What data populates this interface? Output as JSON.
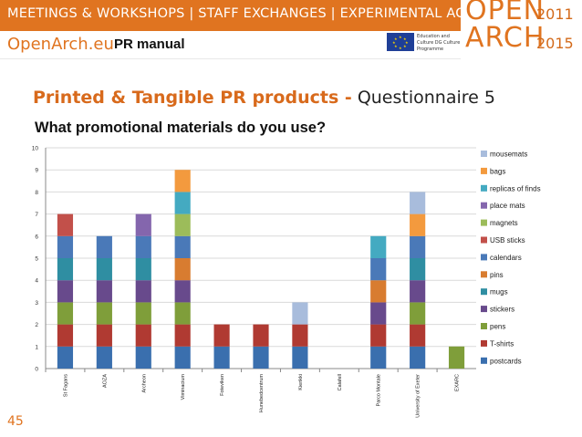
{
  "header": {
    "banner": "MEETINGS & WORKSHOPS | STAFF EXCHANGES | EXPERIMENTAL ACTIONS",
    "site": "OpenArch.eu",
    "manual": "PR manual",
    "eu_text": "Education and Culture DG Culture Programme",
    "logo_line1": "OPEN",
    "logo_line2": "ARCH",
    "year_start": "2011",
    "year_end": "2015"
  },
  "slide": {
    "title_main": "Printed & Tangible PR products -",
    "title_sub": "Questionnaire 5",
    "question": "What promotional materials do you use?",
    "page_number": "45"
  },
  "colors": {
    "accent": "#e07420",
    "postcards": "#3a6fae",
    "T-shirts": "#b03a32",
    "pens": "#7f9e3a",
    "stickers": "#684a8c",
    "mugs": "#2f8ea2",
    "pins": "#d87c30",
    "calendars": "#4a79b8",
    "USB sticks": "#c2504a",
    "magnets": "#9cbc5a",
    "place mats": "#8466ad",
    "replicas of finds": "#44aac1",
    "bags": "#f39a3e",
    "mousemats": "#a8bcdc"
  },
  "chart_data": {
    "type": "bar",
    "stacked": true,
    "title": "",
    "xlabel": "",
    "ylabel": "",
    "ylim": [
      0,
      10
    ],
    "yticks": [
      "0",
      "1",
      "2",
      "3",
      "4",
      "5",
      "6",
      "7",
      "8",
      "9",
      "10"
    ],
    "grid": true,
    "legend_position": "right",
    "categories": [
      "St Fagans",
      "AOZA",
      "Archeon",
      "Viminacium",
      "Foteviken",
      "Hunebedcentrum",
      "Kierikki",
      "Calafell",
      "Parco Montale",
      "University of Exeter",
      "EXARC"
    ],
    "series": [
      {
        "name": "postcards",
        "values": [
          1,
          1,
          1,
          1,
          1,
          1,
          1,
          0,
          1,
          1,
          0
        ]
      },
      {
        "name": "T-shirts",
        "values": [
          1,
          1,
          1,
          1,
          1,
          1,
          1,
          0,
          1,
          1,
          0
        ]
      },
      {
        "name": "pens",
        "values": [
          1,
          1,
          1,
          1,
          0,
          0,
          0,
          0,
          0,
          1,
          1
        ]
      },
      {
        "name": "stickers",
        "values": [
          1,
          1,
          1,
          1,
          0,
          0,
          0,
          0,
          1,
          1,
          0
        ]
      },
      {
        "name": "mugs",
        "values": [
          1,
          1,
          1,
          0,
          0,
          0,
          0,
          0,
          0,
          1,
          0
        ]
      },
      {
        "name": "pins",
        "values": [
          0,
          0,
          0,
          1,
          0,
          0,
          0,
          0,
          1,
          0,
          0
        ]
      },
      {
        "name": "calendars",
        "values": [
          1,
          1,
          1,
          1,
          0,
          0,
          0,
          0,
          1,
          1,
          0
        ]
      },
      {
        "name": "USB sticks",
        "values": [
          1,
          0,
          0,
          0,
          0,
          0,
          0,
          0,
          0,
          0,
          0
        ]
      },
      {
        "name": "magnets",
        "values": [
          0,
          0,
          0,
          1,
          0,
          0,
          0,
          0,
          0,
          0,
          0
        ]
      },
      {
        "name": "place mats",
        "values": [
          0,
          0,
          1,
          0,
          0,
          0,
          0,
          0,
          0,
          0,
          0
        ]
      },
      {
        "name": "replicas of finds",
        "values": [
          0,
          0,
          0,
          1,
          0,
          0,
          0,
          0,
          1,
          0,
          0
        ]
      },
      {
        "name": "bags",
        "values": [
          0,
          0,
          0,
          1,
          0,
          0,
          0,
          0,
          0,
          1,
          0
        ]
      },
      {
        "name": "mousemats",
        "values": [
          0,
          0,
          0,
          0,
          0,
          0,
          1,
          0,
          0,
          1,
          0
        ]
      }
    ]
  }
}
